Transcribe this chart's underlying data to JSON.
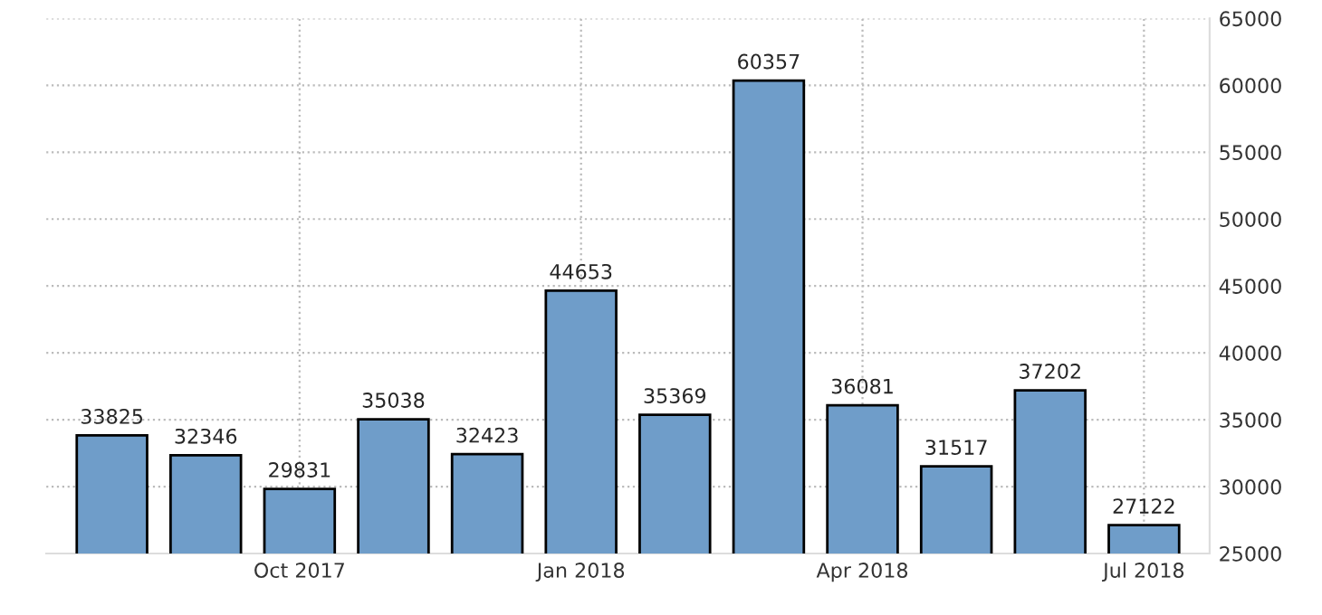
{
  "chart_data": {
    "type": "bar",
    "categories": [
      null,
      null,
      "Oct 2017",
      null,
      null,
      "Jan 2018",
      null,
      null,
      "Apr 2018",
      null,
      null,
      "Jul 2018"
    ],
    "values": [
      33825,
      32346,
      29831,
      35038,
      32423,
      44653,
      35369,
      60357,
      36081,
      31517,
      37202,
      27122
    ],
    "color": "#6f9dc9",
    "data_labels": true,
    "ylim": [
      25000,
      65000
    ],
    "yticks": [
      25000,
      30000,
      35000,
      40000,
      45000,
      50000,
      55000,
      60000,
      65000
    ],
    "grid": true
  }
}
